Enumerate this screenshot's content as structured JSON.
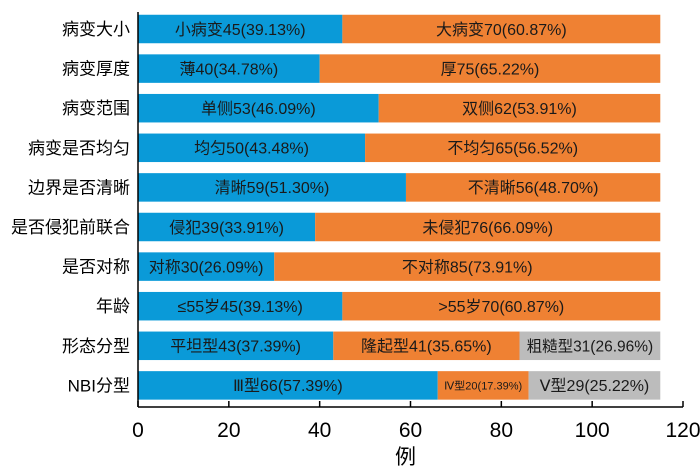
{
  "chart_data": {
    "type": "bar",
    "orientation": "horizontal",
    "stacked": true,
    "xlabel": "例",
    "xlim": [
      0,
      120
    ],
    "xticks": [
      0,
      20,
      40,
      60,
      80,
      100,
      120
    ],
    "grid": false,
    "legend": "none",
    "colors": {
      "blue": "#0a9ad8",
      "orange": "#ef8133",
      "gray": "#bcbcbc",
      "axis": "#000000"
    },
    "categories": [
      {
        "label": "病变大小",
        "segments": [
          {
            "value": 45,
            "label": "小病变45(39.13%)",
            "color": "#0a9ad8"
          },
          {
            "value": 70,
            "label": "大病变70(60.87%)",
            "color": "#ef8133"
          }
        ]
      },
      {
        "label": "病变厚度",
        "segments": [
          {
            "value": 40,
            "label": "薄40(34.78%)",
            "color": "#0a9ad8"
          },
          {
            "value": 75,
            "label": "厚75(65.22%)",
            "color": "#ef8133"
          }
        ]
      },
      {
        "label": "病变范围",
        "segments": [
          {
            "value": 53,
            "label": "单侧53(46.09%)",
            "color": "#0a9ad8"
          },
          {
            "value": 62,
            "label": "双侧62(53.91%)",
            "color": "#ef8133"
          }
        ]
      },
      {
        "label": "病变是否均匀",
        "segments": [
          {
            "value": 50,
            "label": "均匀50(43.48%)",
            "color": "#0a9ad8"
          },
          {
            "value": 65,
            "label": "不均匀65(56.52%)",
            "color": "#ef8133"
          }
        ]
      },
      {
        "label": "边界是否清晰",
        "segments": [
          {
            "value": 59,
            "label": "清晰59(51.30%)",
            "color": "#0a9ad8"
          },
          {
            "value": 56,
            "label": "不清晰56(48.70%)",
            "color": "#ef8133"
          }
        ]
      },
      {
        "label": "是否侵犯前联合",
        "segments": [
          {
            "value": 39,
            "label": "侵犯39(33.91%)",
            "color": "#0a9ad8"
          },
          {
            "value": 76,
            "label": "未侵犯76(66.09%)",
            "color": "#ef8133"
          }
        ]
      },
      {
        "label": "是否对称",
        "segments": [
          {
            "value": 30,
            "label": "对称30(26.09%)",
            "color": "#0a9ad8"
          },
          {
            "value": 85,
            "label": "不对称85(73.91%)",
            "color": "#ef8133"
          }
        ]
      },
      {
        "label": "年龄",
        "segments": [
          {
            "value": 45,
            "label": "≤55岁45(39.13%)",
            "color": "#0a9ad8"
          },
          {
            "value": 70,
            "label": ">55岁70(60.87%)",
            "color": "#ef8133"
          }
        ]
      },
      {
        "label": "形态分型",
        "segments": [
          {
            "value": 43,
            "label": "平坦型43(37.39%)",
            "color": "#0a9ad8"
          },
          {
            "value": 41,
            "label": "隆起型41(35.65%)",
            "color": "#ef8133"
          },
          {
            "value": 31,
            "label": "粗糙型31(26.96%)",
            "color": "#bcbcbc"
          }
        ]
      },
      {
        "label": "NBI分型",
        "segments": [
          {
            "value": 66,
            "label": "Ⅲ型66(57.39%)",
            "color": "#0a9ad8"
          },
          {
            "value": 20,
            "label": "Ⅳ型20(17.39%)",
            "color": "#ef8133"
          },
          {
            "value": 29,
            "label": "Ⅴ型29(25.22%)",
            "color": "#bcbcbc"
          }
        ]
      }
    ]
  }
}
